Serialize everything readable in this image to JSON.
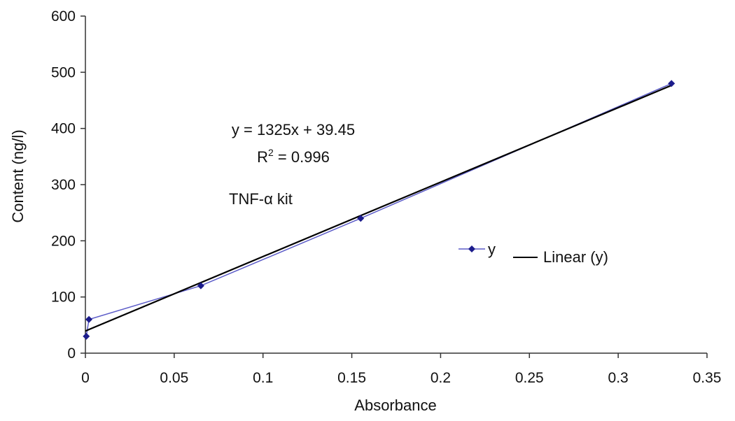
{
  "chart_data": {
    "type": "scatter",
    "title": "",
    "xlabel": "Absorbance",
    "ylabel": "Content (ng/l)",
    "xlim": [
      0,
      0.35
    ],
    "ylim": [
      0,
      600
    ],
    "x_ticks": [
      0,
      0.05,
      0.1,
      0.15,
      0.2,
      0.25,
      0.3,
      0.35
    ],
    "x_tick_labels": [
      "0",
      "0.05",
      "0.1",
      "0.15",
      "0.2",
      "0.25",
      "0.3",
      "0.35"
    ],
    "y_ticks": [
      0,
      100,
      200,
      300,
      400,
      500,
      600
    ],
    "y_tick_labels": [
      "0",
      "100",
      "200",
      "300",
      "400",
      "500",
      "600"
    ],
    "grid": false,
    "legend_position": "right",
    "series": [
      {
        "name": "y",
        "mode": "line+markers",
        "color": "#1c1c8c",
        "marker": "diamond",
        "x": [
          0.0005,
          0.002,
          0.065,
          0.155,
          0.33
        ],
        "y": [
          30,
          60,
          120,
          240,
          480
        ]
      },
      {
        "name": "Linear (y)",
        "mode": "line",
        "color": "#000000",
        "slope": 1325,
        "intercept": 39.45,
        "x_range": [
          0,
          0.33
        ]
      }
    ],
    "annotations": {
      "equation": "y = 1325x + 39.45",
      "r2_prefix": "R",
      "r2_sup": "2",
      "r2_value": " = 0.996",
      "kit": "TNF-α kit"
    }
  }
}
